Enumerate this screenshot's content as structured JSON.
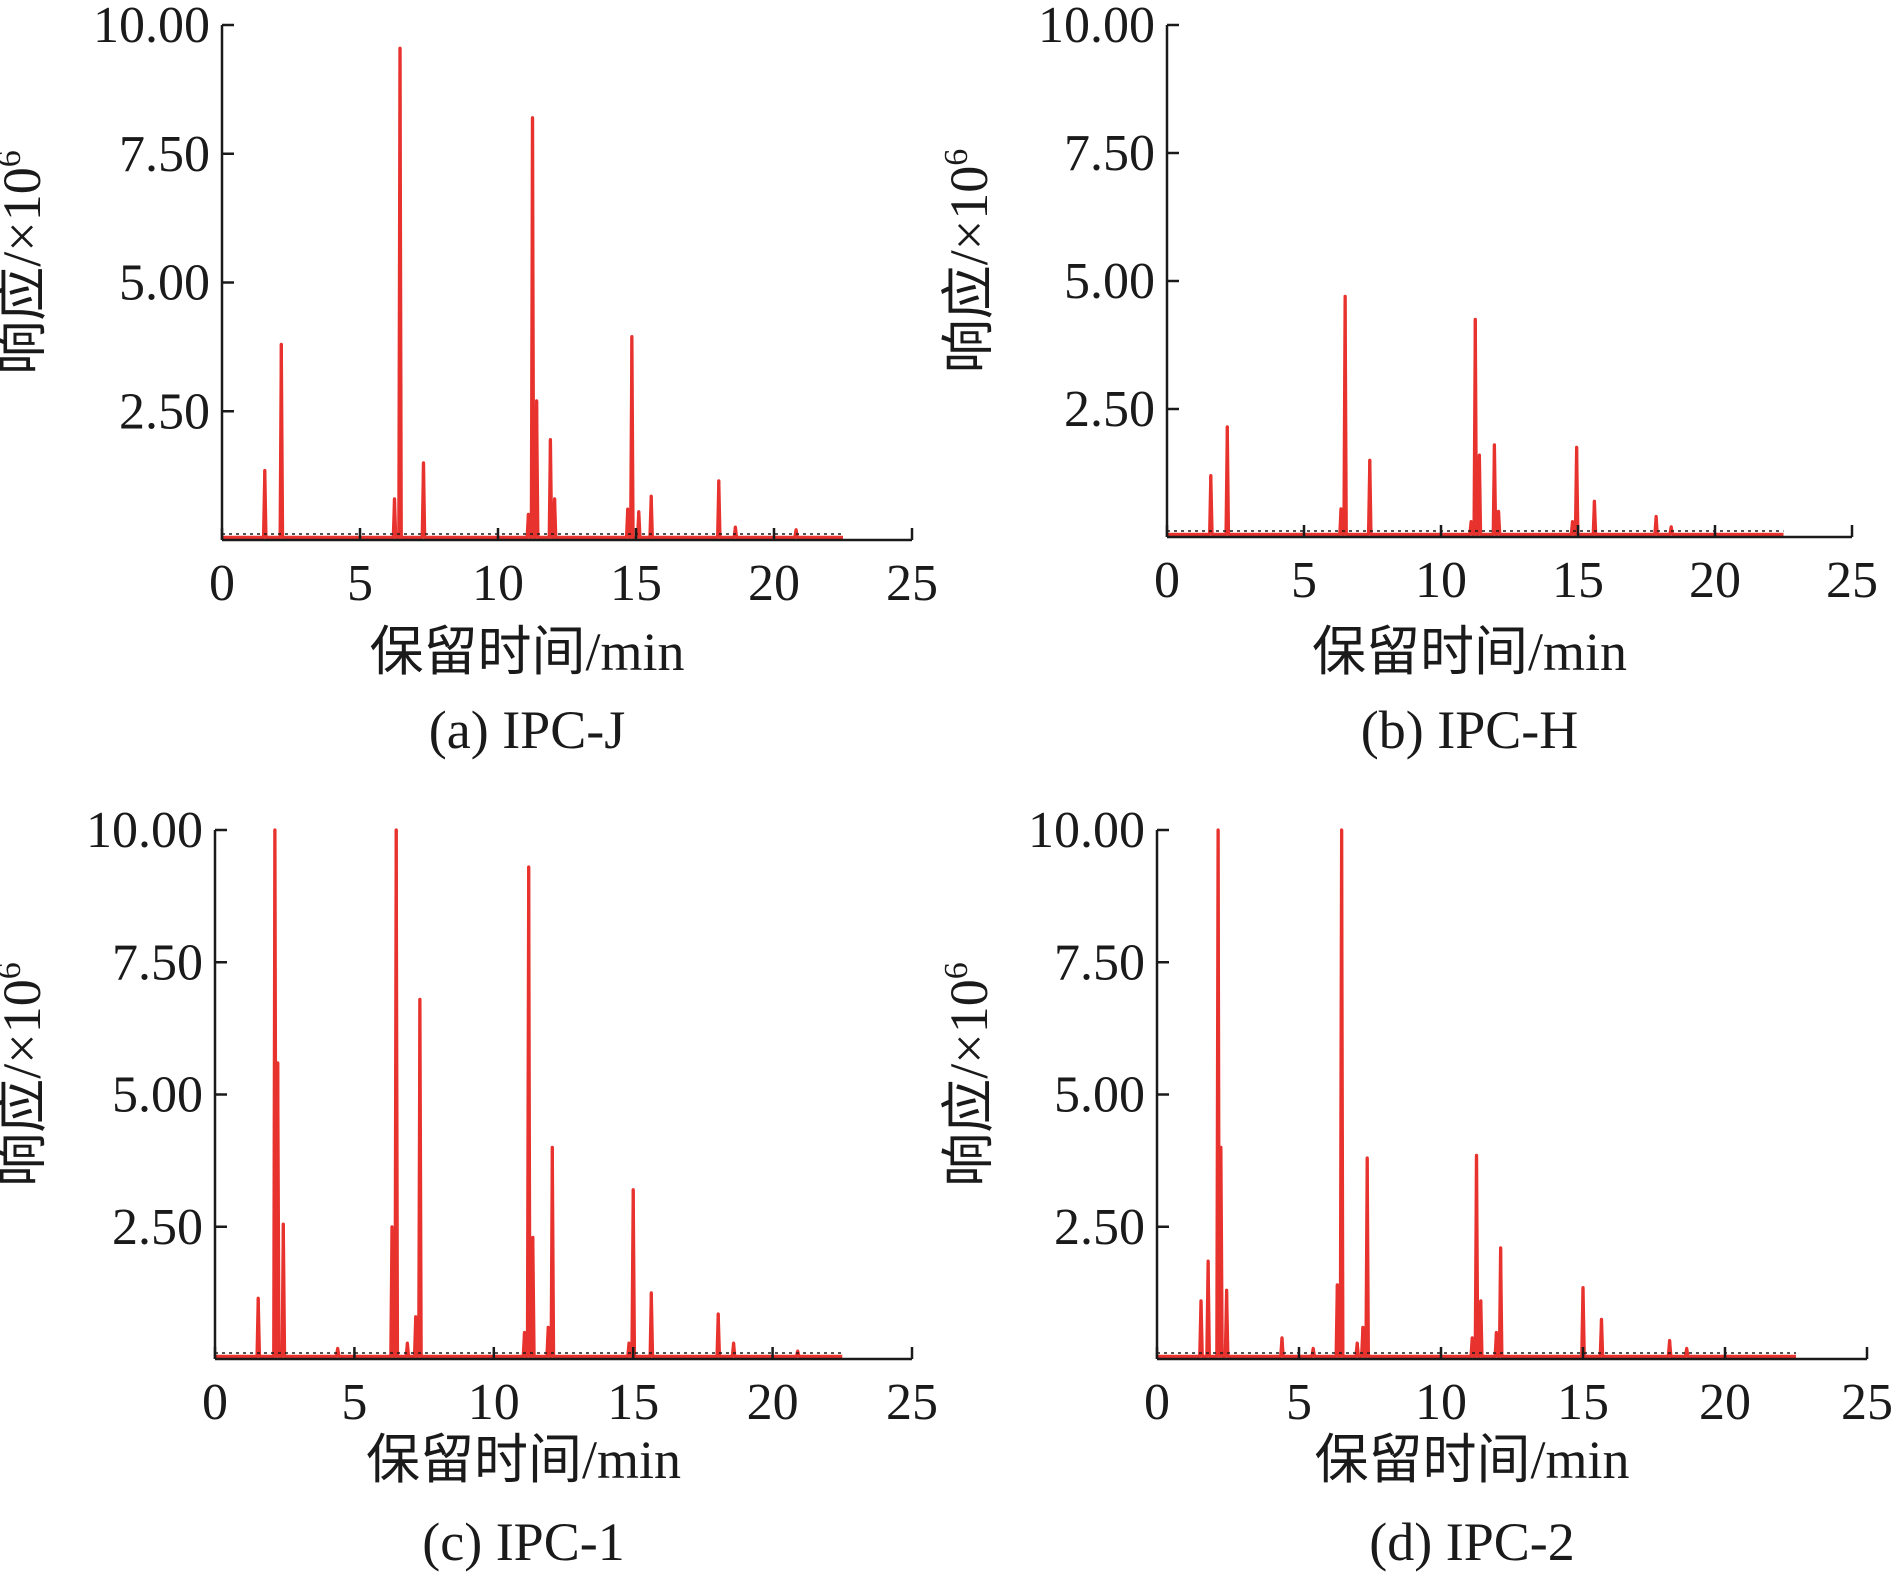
{
  "figure": {
    "line_color": "#e8322e",
    "axis_color": "#1a1a1a"
  },
  "chart_data": [
    {
      "type": "line",
      "caption": "(a) IPC-J",
      "xlabel": "保留时间/min",
      "ylabel": "响应/×10⁶",
      "ylabel_base": "响应/×10",
      "ylabel_exp": "6",
      "xlim": [
        0,
        25
      ],
      "ylim": [
        0,
        10
      ],
      "xticks": [
        "0",
        "5",
        "10",
        "15",
        "20",
        "25"
      ],
      "yticks": [
        "2.50",
        "5.00",
        "7.50",
        "10.00"
      ],
      "x_end": 22.5,
      "baseline": 0.05,
      "peaks": [
        {
          "x": 1.55,
          "y": 1.35
        },
        {
          "x": 2.15,
          "y": 3.8
        },
        {
          "x": 6.25,
          "y": 0.8
        },
        {
          "x": 6.45,
          "y": 9.55
        },
        {
          "x": 7.3,
          "y": 1.5
        },
        {
          "x": 11.1,
          "y": 0.5
        },
        {
          "x": 11.25,
          "y": 8.2
        },
        {
          "x": 11.4,
          "y": 2.7
        },
        {
          "x": 11.9,
          "y": 1.95
        },
        {
          "x": 12.05,
          "y": 0.8
        },
        {
          "x": 14.7,
          "y": 0.6
        },
        {
          "x": 14.85,
          "y": 3.95
        },
        {
          "x": 15.1,
          "y": 0.55
        },
        {
          "x": 15.55,
          "y": 0.85
        },
        {
          "x": 18.0,
          "y": 1.15
        },
        {
          "x": 18.6,
          "y": 0.25
        },
        {
          "x": 20.8,
          "y": 0.2
        }
      ]
    },
    {
      "type": "line",
      "caption": "(b) IPC-H",
      "xlabel": "保留时间/min",
      "ylabel": "响应/×10⁶",
      "ylabel_base": "响应/×10",
      "ylabel_exp": "6",
      "xlim": [
        0,
        25
      ],
      "ylim": [
        0,
        10
      ],
      "xticks": [
        "0",
        "5",
        "10",
        "15",
        "20",
        "25"
      ],
      "yticks": [
        "2.50",
        "5.00",
        "7.50",
        "10.00"
      ],
      "x_end": 22.5,
      "baseline": 0.05,
      "peaks": [
        {
          "x": 1.6,
          "y": 1.2
        },
        {
          "x": 2.2,
          "y": 2.15
        },
        {
          "x": 6.35,
          "y": 0.55
        },
        {
          "x": 6.5,
          "y": 4.7
        },
        {
          "x": 7.4,
          "y": 1.5
        },
        {
          "x": 11.1,
          "y": 0.3
        },
        {
          "x": 11.25,
          "y": 4.25
        },
        {
          "x": 11.4,
          "y": 1.6
        },
        {
          "x": 11.95,
          "y": 1.8
        },
        {
          "x": 12.1,
          "y": 0.5
        },
        {
          "x": 14.8,
          "y": 0.3
        },
        {
          "x": 14.95,
          "y": 1.75
        },
        {
          "x": 15.6,
          "y": 0.7
        },
        {
          "x": 17.85,
          "y": 0.4
        },
        {
          "x": 18.4,
          "y": 0.2
        }
      ]
    },
    {
      "type": "line",
      "caption": "(c) IPC-1",
      "xlabel": "保留时间/min",
      "ylabel": "响应/×10⁶",
      "ylabel_base": "响应/×10",
      "ylabel_exp": "6",
      "xlim": [
        0,
        25
      ],
      "ylim": [
        0,
        10
      ],
      "xticks": [
        "0",
        "5",
        "10",
        "15",
        "20",
        "25"
      ],
      "yticks": [
        "2.50",
        "5.00",
        "7.50",
        "10.00"
      ],
      "x_end": 22.5,
      "baseline": 0.05,
      "peaks": [
        {
          "x": 1.55,
          "y": 1.15
        },
        {
          "x": 2.15,
          "y": 10.0
        },
        {
          "x": 2.25,
          "y": 5.6
        },
        {
          "x": 2.45,
          "y": 2.55
        },
        {
          "x": 4.4,
          "y": 0.2
        },
        {
          "x": 6.35,
          "y": 2.5
        },
        {
          "x": 6.5,
          "y": 10.0
        },
        {
          "x": 6.9,
          "y": 0.3
        },
        {
          "x": 7.2,
          "y": 0.8
        },
        {
          "x": 7.35,
          "y": 6.8
        },
        {
          "x": 11.1,
          "y": 0.5
        },
        {
          "x": 11.25,
          "y": 9.3
        },
        {
          "x": 11.4,
          "y": 2.3
        },
        {
          "x": 11.95,
          "y": 0.6
        },
        {
          "x": 12.1,
          "y": 4.0
        },
        {
          "x": 14.85,
          "y": 0.3
        },
        {
          "x": 15.0,
          "y": 3.2
        },
        {
          "x": 15.65,
          "y": 1.25
        },
        {
          "x": 18.05,
          "y": 0.85
        },
        {
          "x": 18.6,
          "y": 0.3
        },
        {
          "x": 20.9,
          "y": 0.15
        }
      ]
    },
    {
      "type": "line",
      "caption": "(d) IPC-2",
      "xlabel": "保留时间/min",
      "ylabel": "响应/×10⁶",
      "ylabel_base": "响应/×10",
      "ylabel_exp": "6",
      "xlim": [
        0,
        25
      ],
      "ylim": [
        0,
        10
      ],
      "xticks": [
        "0",
        "5",
        "10",
        "15",
        "20",
        "25"
      ],
      "yticks": [
        "2.50",
        "5.00",
        "7.50",
        "10.00"
      ],
      "x_end": 22.5,
      "baseline": 0.05,
      "peaks": [
        {
          "x": 1.55,
          "y": 1.1
        },
        {
          "x": 1.8,
          "y": 1.85
        },
        {
          "x": 2.15,
          "y": 10.0
        },
        {
          "x": 2.25,
          "y": 4.0
        },
        {
          "x": 2.45,
          "y": 1.3
        },
        {
          "x": 4.4,
          "y": 0.4
        },
        {
          "x": 5.5,
          "y": 0.2
        },
        {
          "x": 6.35,
          "y": 1.4
        },
        {
          "x": 6.5,
          "y": 10.0
        },
        {
          "x": 7.05,
          "y": 0.3
        },
        {
          "x": 7.25,
          "y": 0.6
        },
        {
          "x": 7.4,
          "y": 3.8
        },
        {
          "x": 11.1,
          "y": 0.4
        },
        {
          "x": 11.25,
          "y": 3.85
        },
        {
          "x": 11.4,
          "y": 1.1
        },
        {
          "x": 11.95,
          "y": 0.5
        },
        {
          "x": 12.1,
          "y": 2.1
        },
        {
          "x": 15.0,
          "y": 1.35
        },
        {
          "x": 15.65,
          "y": 0.75
        },
        {
          "x": 18.05,
          "y": 0.35
        },
        {
          "x": 18.65,
          "y": 0.2
        }
      ]
    }
  ]
}
